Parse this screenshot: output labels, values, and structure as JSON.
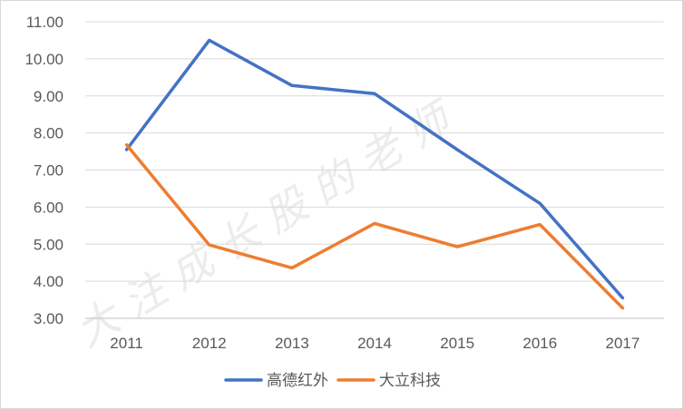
{
  "chart_data": {
    "type": "line",
    "title": "",
    "xlabel": "",
    "ylabel": "",
    "categories": [
      "2011",
      "2012",
      "2013",
      "2014",
      "2015",
      "2016",
      "2017"
    ],
    "ylim": [
      3.0,
      11.0
    ],
    "yticks": [
      "3.00",
      "4.00",
      "5.00",
      "6.00",
      "7.00",
      "8.00",
      "9.00",
      "10.00",
      "11.00"
    ],
    "grid": true,
    "legend_position": "bottom",
    "series": [
      {
        "name": "高德红外",
        "color": "#4472C4",
        "values": [
          7.55,
          10.5,
          9.28,
          9.06,
          7.55,
          6.1,
          3.55
        ]
      },
      {
        "name": "大立科技",
        "color": "#ED7D31",
        "values": [
          7.68,
          4.98,
          4.36,
          5.56,
          4.93,
          5.53,
          3.28
        ]
      }
    ],
    "watermark": "大 注 成 长 股 的 老 师"
  }
}
